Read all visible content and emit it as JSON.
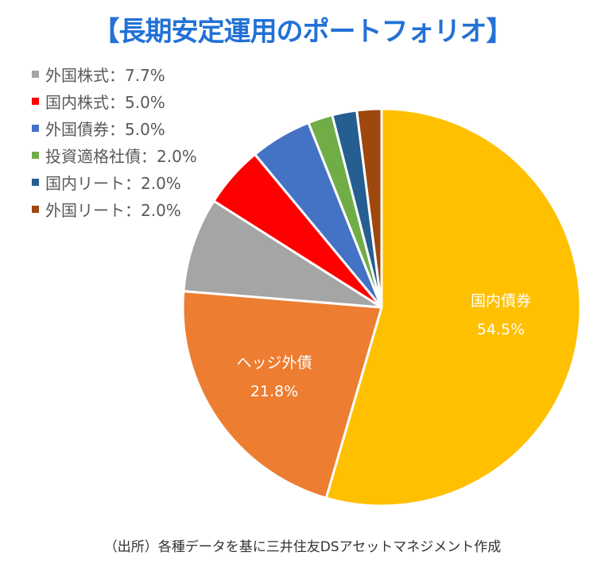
{
  "chart_data": {
    "type": "pie",
    "title": "【長期安定運用のポートフォリオ】",
    "start": "top-clockwise",
    "slices": [
      {
        "label": "国内債券",
        "value": 54.5,
        "display": "54.5%",
        "color": "#FFC000",
        "inside": true
      },
      {
        "label": "ヘッジ外債",
        "value": 21.8,
        "display": "21.8%",
        "color": "#ED7D31",
        "inside": true
      },
      {
        "label": "外国株式",
        "value": 7.7,
        "display": "7.7%",
        "color": "#A5A5A5",
        "inside": false
      },
      {
        "label": "国内株式",
        "value": 5.0,
        "display": "5.0%",
        "color": "#FF0000",
        "inside": false
      },
      {
        "label": "外国債券",
        "value": 5.0,
        "display": "5.0%",
        "color": "#4472C4",
        "inside": false
      },
      {
        "label": "投資適格社債",
        "value": 2.0,
        "display": "2.0%",
        "color": "#70AD47",
        "inside": false
      },
      {
        "label": "国内リート",
        "value": 2.0,
        "display": "2.0%",
        "color": "#255E91",
        "inside": false
      },
      {
        "label": "外国リート",
        "value": 2.0,
        "display": "2.0%",
        "color": "#9E480E",
        "inside": false
      }
    ],
    "legend": [
      {
        "text": "外国株式：7.7%",
        "color": "#A5A5A5"
      },
      {
        "text": "国内株式：5.0%",
        "color": "#FF0000"
      },
      {
        "text": "外国債券：5.0%",
        "color": "#4472C4"
      },
      {
        "text": "投資適格社債：2.0%",
        "color": "#70AD47"
      },
      {
        "text": "国内リート：2.0%",
        "color": "#255E91"
      },
      {
        "text": "外国リート：2.0%",
        "color": "#9E480E"
      }
    ],
    "legend_position": "top-left"
  },
  "footer": "（出所）各種データを基に三井住友DSアセットマネジメント作成"
}
